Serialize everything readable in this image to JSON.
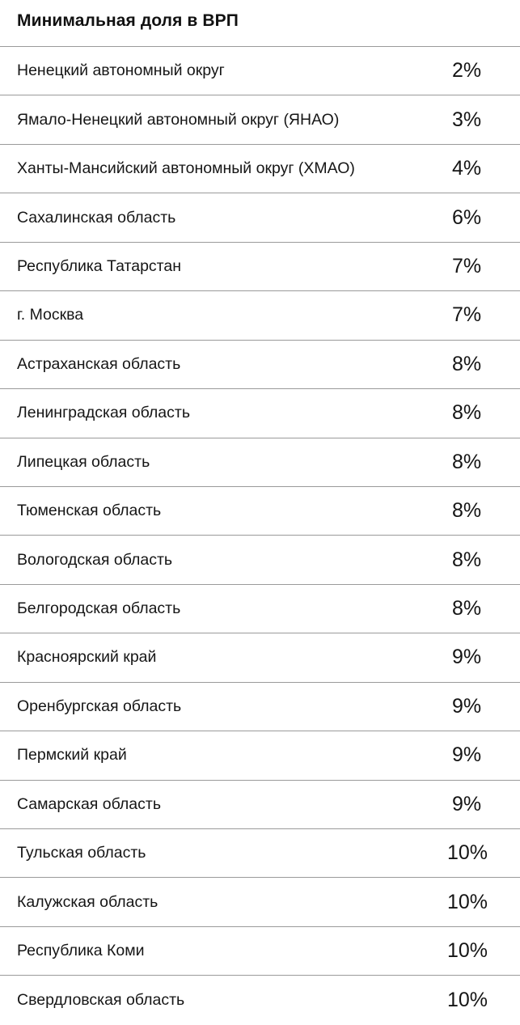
{
  "header": {
    "title": "Минимальная доля в ВРП"
  },
  "rows": [
    {
      "region": "Ненецкий автономный округ",
      "share": "2%"
    },
    {
      "region": "Ямало-Ненецкий автономный округ (ЯНАО)",
      "share": "3%"
    },
    {
      "region": "Ханты-Мансийский автономный округ (ХМАО)",
      "share": "4%"
    },
    {
      "region": "Сахалинская область",
      "share": "6%"
    },
    {
      "region": "Республика Татарстан",
      "share": "7%"
    },
    {
      "region": "г. Москва",
      "share": "7%"
    },
    {
      "region": "Астраханская область",
      "share": "8%"
    },
    {
      "region": "Ленинградская область",
      "share": "8%"
    },
    {
      "region": "Липецкая область",
      "share": "8%"
    },
    {
      "region": "Тюменская область",
      "share": "8%"
    },
    {
      "region": "Вологодская область",
      "share": "8%"
    },
    {
      "region": "Белгородская область",
      "share": "8%"
    },
    {
      "region": "Красноярский край",
      "share": "9%"
    },
    {
      "region": "Оренбургская область",
      "share": "9%"
    },
    {
      "region": "Пермский край",
      "share": "9%"
    },
    {
      "region": "Самарская область",
      "share": "9%"
    },
    {
      "region": "Тульская область",
      "share": "10%"
    },
    {
      "region": "Калужская область",
      "share": "10%"
    },
    {
      "region": "Республика Коми",
      "share": "10%"
    },
    {
      "region": "Свердловская область",
      "share": "10%"
    }
  ]
}
